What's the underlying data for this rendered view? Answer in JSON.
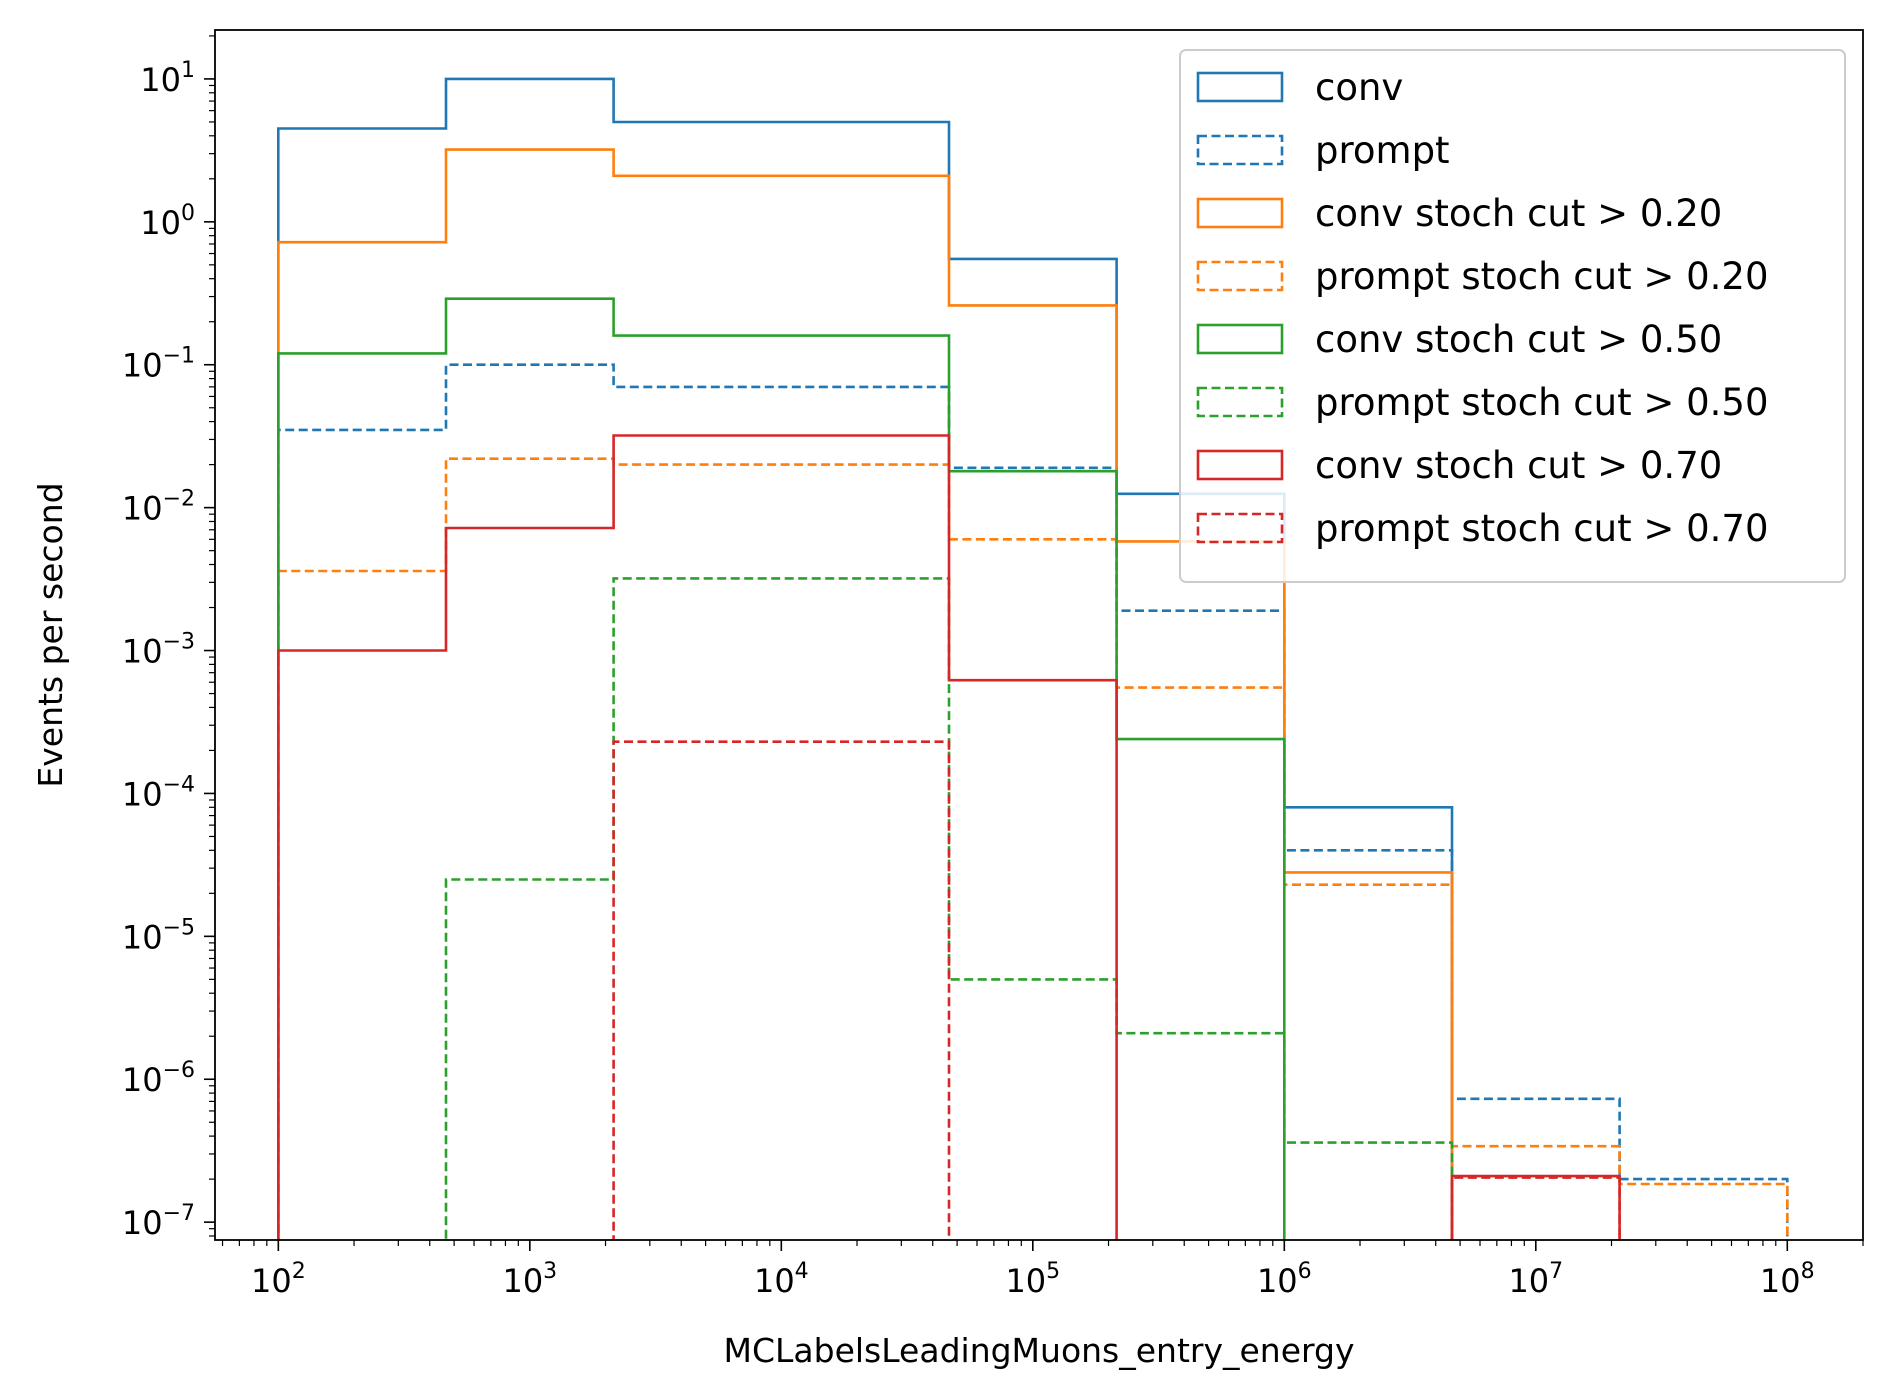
{
  "chart_data": {
    "type": "line",
    "drawstyle": "steps (histogram)",
    "title": "",
    "xlabel": "MCLabelsLeadingMuons_entry_energy",
    "ylabel": "Events per second",
    "x_scale": "log",
    "y_scale": "log",
    "xlim": [
      56,
      200000000
    ],
    "ylim": [
      7.5e-08,
      22
    ],
    "grid": false,
    "legend_position": "top-right",
    "x_ticks": [
      {
        "value": 100,
        "base": "10",
        "exp": "2"
      },
      {
        "value": 1000,
        "base": "10",
        "exp": "3"
      },
      {
        "value": 10000,
        "base": "10",
        "exp": "4"
      },
      {
        "value": 100000,
        "base": "10",
        "exp": "5"
      },
      {
        "value": 1000000,
        "base": "10",
        "exp": "6"
      },
      {
        "value": 10000000,
        "base": "10",
        "exp": "7"
      },
      {
        "value": 100000000,
        "base": "10",
        "exp": "8"
      }
    ],
    "y_ticks": [
      {
        "value": 10,
        "base": "10",
        "exp": "1"
      },
      {
        "value": 1,
        "base": "10",
        "exp": "0"
      },
      {
        "value": 0.1,
        "base": "10",
        "exp": "−1"
      },
      {
        "value": 0.01,
        "base": "10",
        "exp": "−2"
      },
      {
        "value": 0.001,
        "base": "10",
        "exp": "−3"
      },
      {
        "value": 0.0001,
        "base": "10",
        "exp": "−4"
      },
      {
        "value": 1e-05,
        "base": "10",
        "exp": "−5"
      },
      {
        "value": 1e-06,
        "base": "10",
        "exp": "−6"
      },
      {
        "value": 1e-07,
        "base": "10",
        "exp": "−7"
      }
    ],
    "bin_edges": [
      100,
      464,
      2154,
      10000,
      46416,
      215443,
      1000000,
      4641589,
      21544347,
      100000000
    ],
    "series": [
      {
        "name": "conv",
        "color": "#1f77b4",
        "dashed": false,
        "values": [
          4.5,
          10,
          5,
          5,
          0.55,
          0.0125,
          8e-05,
          0,
          0
        ]
      },
      {
        "name": "prompt",
        "color": "#1f77b4",
        "dashed": true,
        "values": [
          0.035,
          0.1,
          0.07,
          0.07,
          0.019,
          0.0019,
          4e-05,
          7.3e-07,
          2e-07
        ]
      },
      {
        "name": "conv stoch cut > 0.20",
        "color": "#ff7f0e",
        "dashed": false,
        "values": [
          0.72,
          3.2,
          2.1,
          2.1,
          0.26,
          0.0058,
          2.8e-05,
          0,
          0
        ]
      },
      {
        "name": "prompt stoch cut > 0.20",
        "color": "#ff7f0e",
        "dashed": true,
        "values": [
          0.0036,
          0.022,
          0.02,
          0.02,
          0.006,
          0.00055,
          2.3e-05,
          3.4e-07,
          1.85e-07
        ]
      },
      {
        "name": "conv stoch cut > 0.50",
        "color": "#2ca02c",
        "dashed": false,
        "values": [
          0.12,
          0.29,
          0.16,
          0.16,
          0.018,
          0.00024,
          0,
          0,
          0
        ]
      },
      {
        "name": "prompt stoch cut > 0.50",
        "color": "#2ca02c",
        "dashed": true,
        "values": [
          0,
          2.5e-05,
          0.0032,
          0.0032,
          5e-06,
          2.1e-06,
          3.6e-07,
          0,
          0
        ]
      },
      {
        "name": "conv stoch cut > 0.70",
        "color": "#d62728",
        "dashed": false,
        "values": [
          0.001,
          0.0072,
          0.032,
          0.032,
          0.00062,
          0,
          0,
          2.1e-07,
          0
        ]
      },
      {
        "name": "prompt stoch cut > 0.70",
        "color": "#d62728",
        "dashed": true,
        "values": [
          0,
          0,
          0.00023,
          0.00023,
          0,
          0,
          0,
          2.05e-07,
          0
        ]
      }
    ]
  }
}
